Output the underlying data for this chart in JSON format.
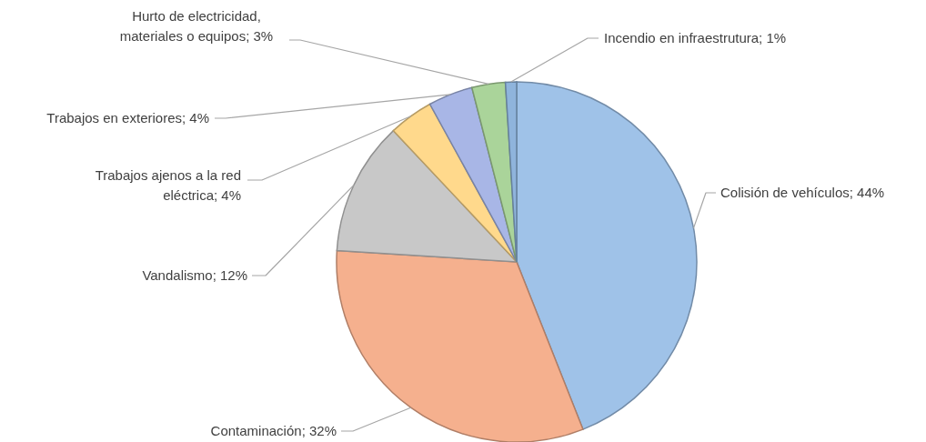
{
  "chart_data": {
    "type": "pie",
    "categories": [
      "Colisión de vehículos",
      "Contaminación",
      "Vandalismo",
      "Trabajos ajenos a la red eléctrica",
      "Trabajos en exteriores",
      "Hurto de electricidad, materiales o equipos",
      "Incendio en infraestrutura"
    ],
    "values": [
      44,
      32,
      12,
      4,
      4,
      3,
      1
    ],
    "value_labels": [
      "44%",
      "32%",
      "12%",
      "4%",
      "4%",
      "3%",
      "1%"
    ],
    "colors": [
      "#9fc2e8",
      "#f5b08e",
      "#c8c8c8",
      "#ffd98c",
      "#a8b6e6",
      "#aad49a",
      "#8fb4dc"
    ]
  }
}
